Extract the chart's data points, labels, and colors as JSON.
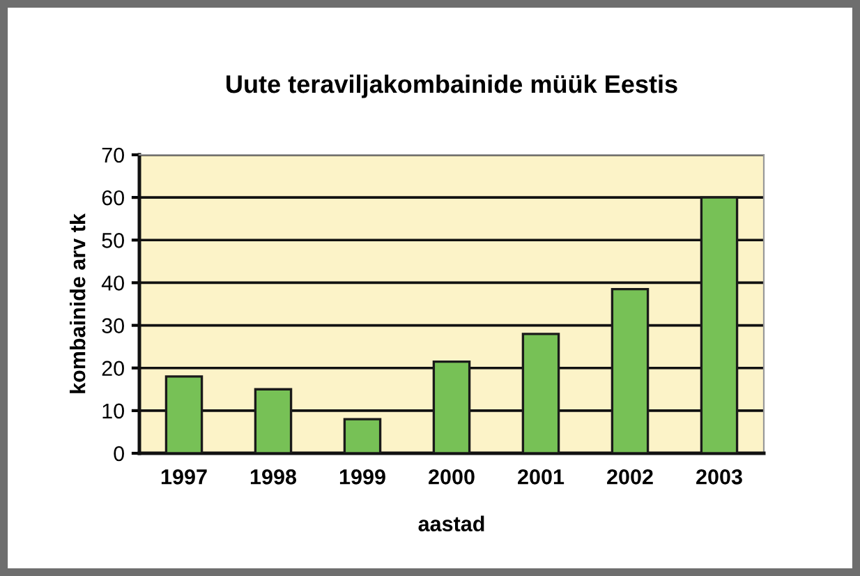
{
  "chart_data": {
    "type": "bar",
    "title": "Uute teraviljakombainide müük Eestis",
    "xlabel": "aastad",
    "ylabel": "kombainide arv tk",
    "categories": [
      "1997",
      "1998",
      "1999",
      "2000",
      "2001",
      "2002",
      "2003"
    ],
    "values": [
      18,
      15,
      8,
      21.5,
      28,
      38.5,
      60
    ],
    "color": "#77c156",
    "ylim": [
      0,
      70
    ],
    "yticks": [
      0,
      10,
      20,
      30,
      40,
      50,
      60,
      70
    ],
    "grid": "y",
    "legend": false
  }
}
